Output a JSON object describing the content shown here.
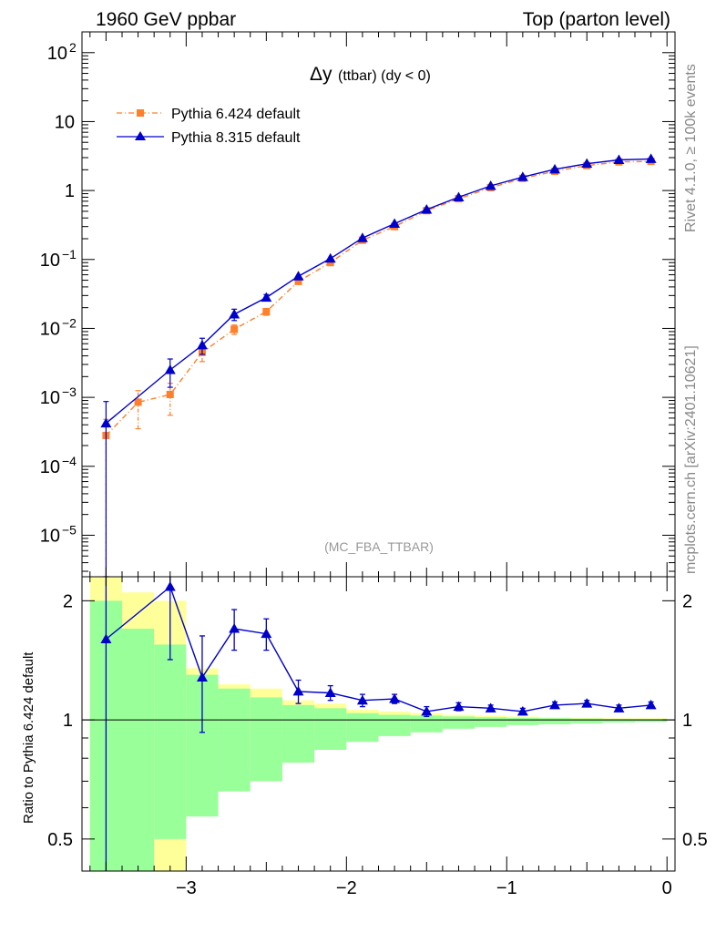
{
  "header": {
    "left": "1960 GeV ppbar",
    "right": "Top (parton level)"
  },
  "side_labels": {
    "rivet": "Rivet 4.1.0, ≥ 100k events",
    "mcplots": "mcplots.cern.ch [arXiv:2401.10621]"
  },
  "colors": {
    "pythia6": "#ff7f2a",
    "pythia8": "#0000cc",
    "band_green": "#99ff99",
    "band_yellow": "#ffff99"
  },
  "chart_data": [
    {
      "type": "line",
      "title_main": "Δy",
      "title_sub": "(ttbar) (dy < 0)",
      "watermark": "(MC_FBA_TTBAR)",
      "yscale": "log",
      "xlim": [
        -3.65,
        0.05
      ],
      "ylim": [
        2.5e-06,
        200
      ],
      "y_tick_labels": [
        {
          "value": 100,
          "base": "10",
          "exp": "2"
        },
        {
          "value": 10,
          "base": "10",
          "exp": ""
        },
        {
          "value": 1,
          "base": "1",
          "exp": ""
        },
        {
          "value": 0.1,
          "base": "10",
          "exp": "−1"
        },
        {
          "value": 0.01,
          "base": "10",
          "exp": "−2"
        },
        {
          "value": 0.001,
          "base": "10",
          "exp": "−3"
        },
        {
          "value": 0.0001,
          "base": "10",
          "exp": "−4"
        },
        {
          "value": 1e-05,
          "base": "10",
          "exp": "−5"
        }
      ],
      "legend_position": "top-left",
      "series": [
        {
          "name": "Pythia 6.424 default",
          "style": "dash-dot, square markers",
          "x": [
            -3.5,
            -3.3,
            -3.1,
            -2.9,
            -2.7,
            -2.5,
            -2.3,
            -2.1,
            -1.9,
            -1.7,
            -1.5,
            -1.3,
            -1.1,
            -0.9,
            -0.7,
            -0.5,
            -0.3,
            -0.1
          ],
          "y": [
            0.00028,
            0.00085,
            0.0011,
            0.0045,
            0.0097,
            0.0175,
            0.048,
            0.09,
            0.19,
            0.3,
            0.51,
            0.76,
            1.1,
            1.5,
            1.9,
            2.3,
            2.6,
            2.65
          ],
          "err_low": [
            0.00028,
            0.0005,
            0.00055,
            0.0012,
            0.0015,
            0.002,
            0.004,
            0.006,
            0.01,
            0.015,
            0.02,
            0.03,
            0.04,
            0.05,
            0.05,
            0.06,
            0.06,
            0.06
          ],
          "err_high": [
            0.0002,
            0.0004,
            0.0005,
            0.0012,
            0.0015,
            0.002,
            0.004,
            0.006,
            0.01,
            0.015,
            0.02,
            0.03,
            0.04,
            0.05,
            0.05,
            0.06,
            0.06,
            0.06
          ]
        },
        {
          "name": "Pythia 8.315 default",
          "style": "solid, triangle markers",
          "x": [
            -3.5,
            -3.1,
            -2.9,
            -2.7,
            -2.5,
            -2.3,
            -2.1,
            -1.9,
            -1.7,
            -1.5,
            -1.3,
            -1.1,
            -0.9,
            -0.7,
            -0.5,
            -0.3,
            -0.1
          ],
          "y": [
            0.00042,
            0.0025,
            0.0057,
            0.016,
            0.028,
            0.057,
            0.103,
            0.205,
            0.33,
            0.53,
            0.8,
            1.17,
            1.57,
            2.03,
            2.45,
            2.78,
            2.88
          ],
          "err_low": [
            0.00042,
            0.0011,
            0.0015,
            0.003,
            0.003,
            0.005,
            0.007,
            0.01,
            0.015,
            0.02,
            0.03,
            0.04,
            0.05,
            0.05,
            0.06,
            0.06,
            0.06
          ],
          "err_high": [
            0.00045,
            0.0011,
            0.0015,
            0.003,
            0.003,
            0.005,
            0.007,
            0.01,
            0.015,
            0.02,
            0.03,
            0.04,
            0.05,
            0.05,
            0.06,
            0.06,
            0.06
          ]
        }
      ]
    },
    {
      "type": "line",
      "ylabel": "Ratio to Pythia 6.424 default",
      "yscale": "log",
      "xlim": [
        -3.65,
        0.05
      ],
      "ylim": [
        0.415,
        2.3
      ],
      "x_tick_labels": [
        {
          "value": -3,
          "label": "−3"
        },
        {
          "value": -2,
          "label": "−2"
        },
        {
          "value": -1,
          "label": "−1"
        },
        {
          "value": 0,
          "label": "0"
        }
      ],
      "y_tick_labels": [
        {
          "value": 0.5,
          "label": "0.5"
        },
        {
          "value": 1,
          "label": "1"
        },
        {
          "value": 2,
          "label": "2"
        }
      ],
      "reference_line": 1,
      "bands": {
        "bin_edges": [
          -3.6,
          -3.4,
          -3.2,
          -3.0,
          -2.8,
          -2.6,
          -2.4,
          -2.2,
          -2.0,
          -1.8,
          -1.6,
          -1.4,
          -1.2,
          -1.0,
          -0.8,
          -0.6,
          -0.4,
          -0.2,
          0.0
        ],
        "yellow_low": [
          0.3,
          0.3,
          0.3,
          0.8,
          0.87,
          0.87,
          0.9,
          0.92,
          0.95,
          0.96,
          0.97,
          0.975,
          0.98,
          0.985,
          0.988,
          0.99,
          0.992,
          0.993
        ],
        "yellow_high": [
          3.0,
          2.1,
          2.0,
          1.35,
          1.23,
          1.2,
          1.12,
          1.1,
          1.06,
          1.05,
          1.04,
          1.03,
          1.025,
          1.02,
          1.015,
          1.012,
          1.01,
          1.01
        ],
        "green_low": [
          0.3,
          0.38,
          0.5,
          0.57,
          0.66,
          0.7,
          0.78,
          0.84,
          0.88,
          0.91,
          0.93,
          0.95,
          0.96,
          0.97,
          0.975,
          0.98,
          0.985,
          0.988
        ],
        "green_high": [
          2.0,
          1.7,
          1.55,
          1.3,
          1.2,
          1.14,
          1.09,
          1.07,
          1.04,
          1.03,
          1.025,
          1.02,
          1.015,
          1.012,
          1.01,
          1.008,
          1.006,
          1.006
        ]
      },
      "series": [
        {
          "name": "Pythia 8.315 default",
          "x": [
            -3.5,
            -3.1,
            -2.9,
            -2.7,
            -2.5,
            -2.3,
            -2.1,
            -1.9,
            -1.7,
            -1.5,
            -1.3,
            -1.1,
            -0.9,
            -0.7,
            -0.5,
            -0.3,
            -0.1
          ],
          "y": [
            1.6,
            2.17,
            1.28,
            1.7,
            1.65,
            1.18,
            1.17,
            1.12,
            1.13,
            1.05,
            1.08,
            1.07,
            1.05,
            1.09,
            1.1,
            1.07,
            1.09
          ],
          "err_low": [
            1.2,
            0.75,
            0.35,
            0.2,
            0.15,
            0.08,
            0.05,
            0.04,
            0.03,
            0.03,
            0.025,
            0.02,
            0.02,
            0.02,
            0.02,
            0.02,
            0.02
          ],
          "err_high": [
            1.2,
            0.75,
            0.35,
            0.2,
            0.15,
            0.08,
            0.05,
            0.04,
            0.03,
            0.03,
            0.025,
            0.02,
            0.02,
            0.02,
            0.02,
            0.02,
            0.02
          ]
        }
      ]
    }
  ]
}
